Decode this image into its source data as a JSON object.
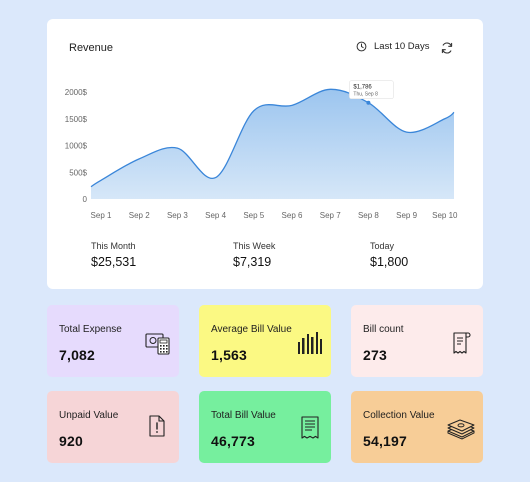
{
  "panel": {
    "title": "Revenue",
    "range_label": "Last 10 Days"
  },
  "chart_data": {
    "type": "area",
    "title": "Revenue",
    "categories": [
      "Sep 1",
      "Sep 2",
      "Sep 3",
      "Sep 4",
      "Sep 5",
      "Sep 6",
      "Sep 7",
      "Sep 8",
      "Sep 9",
      "Sep 10"
    ],
    "series": [
      {
        "values": [
          350,
          750,
          950,
          400,
          1650,
          1750,
          2050,
          1800,
          1250,
          1500
        ]
      }
    ],
    "y_ticks": [
      "2000$",
      "1500$",
      "1000$",
      "500$",
      "0"
    ],
    "ylim": [
      0,
      2000
    ],
    "grid": false,
    "tooltip": {
      "value": "$1,786",
      "date": "Thu, Sep 8"
    },
    "colors": {
      "line": "#3a86d9",
      "fill_top": "#9cc5ef",
      "fill_bottom": "#d6e7f8"
    }
  },
  "summary": [
    {
      "label": "This Month",
      "value": "$25,531"
    },
    {
      "label": "This Week",
      "value": "$7,319"
    },
    {
      "label": "Today",
      "value": "$1,800"
    }
  ],
  "cards": [
    {
      "label": "Total Expense",
      "value": "7,082",
      "icon": "calculator-icon",
      "color": "#e6dbfd"
    },
    {
      "label": "Average Bill Value",
      "value": "1,563",
      "icon": "bar-code-icon",
      "color": "#fbf983"
    },
    {
      "label": "Bill count",
      "value": "273",
      "icon": "receipt-icon",
      "color": "#fdebeb"
    },
    {
      "label": "Unpaid Value",
      "value": "920",
      "icon": "unpaid-invoice-icon",
      "color": "#f6d5d7"
    },
    {
      "label": "Total Bill Value",
      "value": "46,773",
      "icon": "bill-icon",
      "color": "#76ef9e"
    },
    {
      "label": "Collection Value",
      "value": "54,197",
      "icon": "cash-stack-icon",
      "color": "#f7cd97"
    }
  ]
}
